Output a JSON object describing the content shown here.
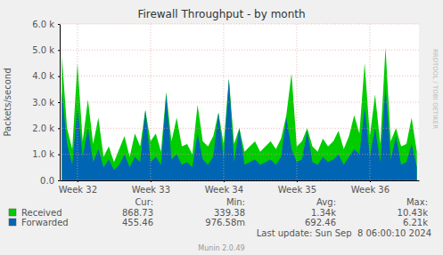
{
  "chart_data": {
    "type": "area",
    "title": "Firewall Throughput - by month",
    "ylabel": "Packets/second",
    "watermark": "RRDTOOL / TOBI OETIKER",
    "footer": "Last update: Sun Sep  8 06:00:10 2024",
    "credit": "Munin 2.0.49",
    "grid": true,
    "xlim": [
      216.3,
      250.7
    ],
    "xticks": [
      {
        "value": 218,
        "label": "Week 32"
      },
      {
        "value": 225,
        "label": "Week 33"
      },
      {
        "value": 232,
        "label": "Week 34"
      },
      {
        "value": 239,
        "label": "Week 35"
      },
      {
        "value": 246,
        "label": "Week 36"
      }
    ],
    "ylim": [
      0,
      6000
    ],
    "yticks": [
      {
        "value": 0,
        "label": "0.0"
      },
      {
        "value": 1000,
        "label": "1.0 k"
      },
      {
        "value": 2000,
        "label": "2.0 k"
      },
      {
        "value": 3000,
        "label": "3.0 k"
      },
      {
        "value": 4000,
        "label": "4.0 k"
      },
      {
        "value": 5000,
        "label": "5.0 k"
      },
      {
        "value": 6000,
        "label": "6.0 k"
      }
    ],
    "x": [
      216.5,
      217,
      217.5,
      218,
      218.5,
      219,
      219.5,
      220,
      220.5,
      221,
      221.5,
      222,
      222.5,
      223,
      223.5,
      224,
      224.5,
      225,
      225.5,
      226,
      226.5,
      227,
      227.5,
      228,
      228.5,
      229,
      229.5,
      230,
      230.5,
      231,
      231.5,
      232,
      232.5,
      233,
      233.5,
      234,
      234.5,
      235,
      235.5,
      236,
      236.5,
      237,
      237.5,
      238,
      238.5,
      239,
      239.5,
      240,
      240.5,
      241,
      241.5,
      242,
      242.5,
      243,
      243.5,
      244,
      244.5,
      245,
      245.5,
      246,
      246.5,
      247,
      247.5,
      248,
      248.5,
      249,
      249.5,
      250,
      250.5
    ],
    "stats_columns": [
      "Cur:",
      "Min:",
      "Avg:",
      "Max:"
    ],
    "series": [
      {
        "name": "Received",
        "color": "#00cc00",
        "stats": [
          "868.73",
          "339.38",
          "1.34k",
          "10.43k"
        ],
        "values": [
          4800,
          2000,
          1200,
          4500,
          1500,
          3100,
          1400,
          2400,
          900,
          1300,
          700,
          1200,
          1700,
          900,
          1800,
          1300,
          2700,
          1500,
          1800,
          1100,
          3400,
          1500,
          2400,
          1300,
          1400,
          1000,
          2900,
          1500,
          1300,
          1700,
          2600,
          1400,
          3900,
          1400,
          2000,
          1100,
          1300,
          1500,
          1100,
          1300,
          1500,
          1200,
          1600,
          2500,
          4100,
          1300,
          1500,
          2000,
          1300,
          1100,
          1600,
          1300,
          1500,
          1900,
          1200,
          1700,
          2500,
          1800,
          4500,
          1700,
          3300,
          1400,
          5100,
          1500,
          2000,
          1300,
          1400,
          2400,
          1100
        ]
      },
      {
        "name": "Forwarded",
        "color": "#0066b3",
        "stats": [
          "455.46",
          "976.58m",
          "692.46",
          "6.21k"
        ],
        "values": [
          3400,
          1400,
          600,
          2800,
          900,
          2000,
          700,
          1200,
          500,
          800,
          400,
          600,
          1000,
          500,
          900,
          700,
          2700,
          700,
          900,
          600,
          3300,
          800,
          1000,
          600,
          700,
          500,
          1800,
          800,
          600,
          900,
          2600,
          800,
          3900,
          700,
          2000,
          600,
          700,
          800,
          600,
          700,
          800,
          600,
          900,
          2400,
          1200,
          700,
          800,
          1900,
          700,
          600,
          900,
          700,
          800,
          1000,
          600,
          900,
          1200,
          1000,
          2800,
          900,
          2000,
          700,
          3600,
          800,
          1700,
          600,
          700,
          1400,
          500
        ]
      }
    ]
  }
}
